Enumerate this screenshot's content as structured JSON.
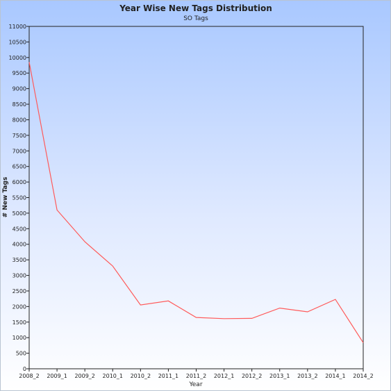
{
  "chart_data": {
    "type": "line",
    "title": "Year Wise New Tags Distribution",
    "subtitle": "SO Tags",
    "xlabel": "Year",
    "ylabel": "# New Tags",
    "categories": [
      "2008_2",
      "2009_1",
      "2009_2",
      "2010_1",
      "2010_2",
      "2011_1",
      "2011_2",
      "2012_1",
      "2012_2",
      "2013_1",
      "2013_2",
      "2014_1",
      "2014_2"
    ],
    "series": [
      {
        "values": [
          9850,
          5100,
          4080,
          3300,
          2050,
          2180,
          1650,
          1610,
          1620,
          1950,
          1830,
          2230,
          840
        ],
        "color": "#ff5a5a"
      }
    ],
    "ylim": [
      0,
      11000
    ],
    "yticks": [
      0,
      500,
      1000,
      1500,
      2000,
      2500,
      3000,
      3500,
      4000,
      4500,
      5000,
      5500,
      6000,
      6500,
      7000,
      7500,
      8000,
      8500,
      9000,
      9500,
      10000,
      10500,
      11000
    ],
    "grid": false,
    "legend": "none"
  }
}
